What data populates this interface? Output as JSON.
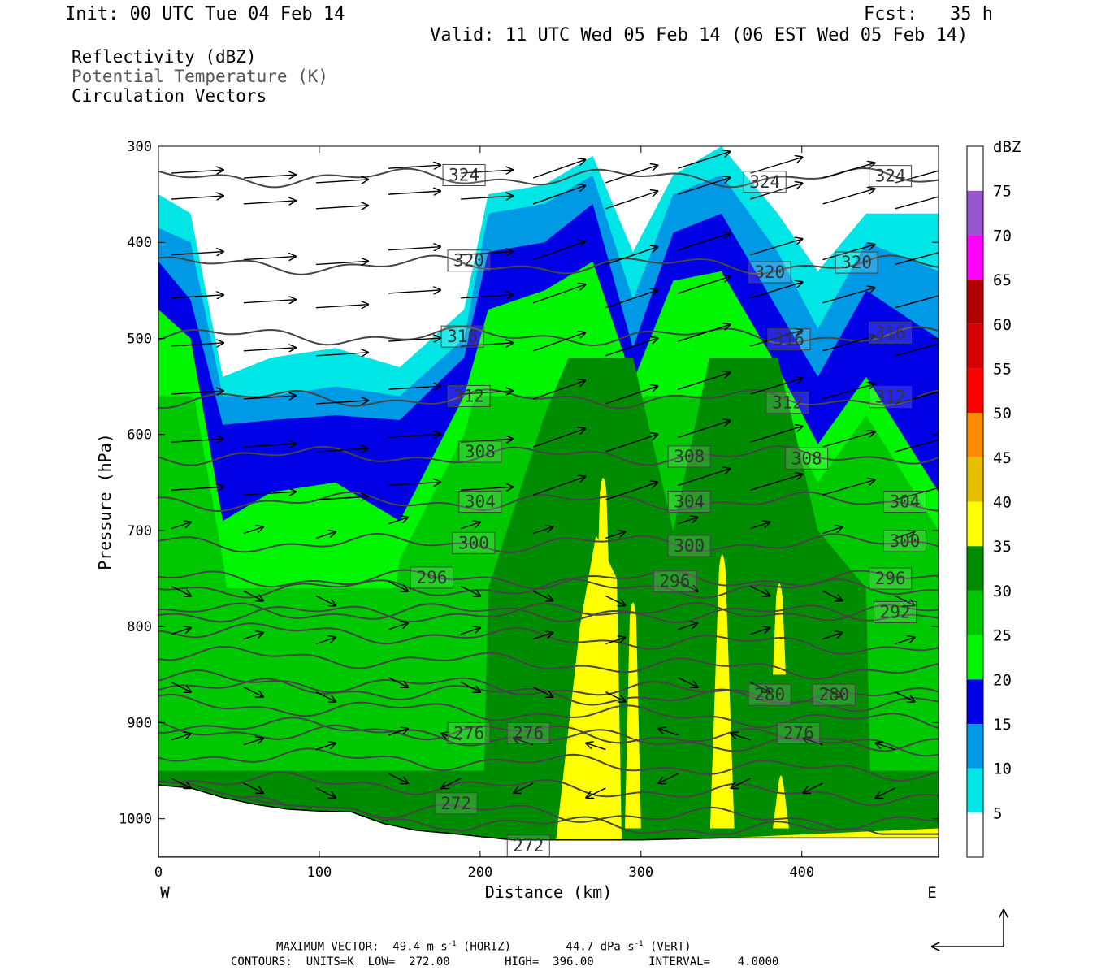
{
  "header": {
    "init": "Init: 00 UTC Tue 04 Feb 14",
    "fcst": "Fcst:   35 h",
    "valid": "Valid: 11 UTC Wed 05 Feb 14 (06 EST Wed 05 Feb 14)"
  },
  "legend": {
    "line1": "Reflectivity (dBZ)",
    "line2": "Potential Temperature (K)",
    "line3": "Circulation Vectors"
  },
  "footer": {
    "max_vector_prefix": "MAXIMUM VECTOR:  49.4 m s",
    "max_vector_horiz": " (HORIZ)        44.7 dPa s",
    "max_vector_vert": " (VERT)",
    "exp": "-1",
    "contours": "CONTOURS:  UNITS=K  LOW=  272.00        HIGH=  396.00        INTERVAL=    4.0000"
  },
  "colors": {
    "bins": [
      "#ffffff",
      "#00e6e6",
      "#0099e6",
      "#0000e6",
      "#00f500",
      "#00c800",
      "#008c00",
      "#ffff00",
      "#e6c000",
      "#ff8c00",
      "#ff0000",
      "#d70000",
      "#b00000",
      "#ff00ff",
      "#9955cc",
      "#ffffff"
    ],
    "contour": "#454545",
    "vector": "#000000"
  },
  "chart_data": {
    "type": "heatmap",
    "title": "",
    "xlabel": "Distance (km)",
    "ylabel": "Pressure (hPa)",
    "xlim": [
      0,
      485
    ],
    "ylim": [
      1040,
      300
    ],
    "x_ticks": [
      "0",
      "100",
      "200",
      "300",
      "400"
    ],
    "y_ticks": [
      "300",
      "400",
      "500",
      "600",
      "700",
      "800",
      "900",
      "1000"
    ],
    "x_end_labels": {
      "west": "W",
      "east": "E"
    },
    "colorbar": {
      "unit": "dBZ",
      "labels": [
        "5",
        "10",
        "15",
        "20",
        "25",
        "30",
        "35",
        "40",
        "45",
        "50",
        "55",
        "60",
        "65",
        "70",
        "75"
      ]
    },
    "contour_labels": [
      "324",
      "320",
      "316",
      "312",
      "308",
      "304",
      "300",
      "296",
      "292",
      "280",
      "276",
      "272"
    ],
    "contour_label_positions": [
      {
        "text": "324",
        "x": 190,
        "p": 330
      },
      {
        "text": "324",
        "x": 377,
        "p": 337
      },
      {
        "text": "324",
        "x": 455,
        "p": 331
      },
      {
        "text": "320",
        "x": 193,
        "p": 419
      },
      {
        "text": "320",
        "x": 380,
        "p": 431
      },
      {
        "text": "320",
        "x": 434,
        "p": 421
      },
      {
        "text": "316",
        "x": 189,
        "p": 498
      },
      {
        "text": "316",
        "x": 392,
        "p": 501
      },
      {
        "text": "316",
        "x": 455,
        "p": 494
      },
      {
        "text": "312",
        "x": 193,
        "p": 560
      },
      {
        "text": "312",
        "x": 391,
        "p": 567
      },
      {
        "text": "312",
        "x": 455,
        "p": 561
      },
      {
        "text": "308",
        "x": 200,
        "p": 618
      },
      {
        "text": "308",
        "x": 330,
        "p": 623
      },
      {
        "text": "308",
        "x": 403,
        "p": 625
      },
      {
        "text": "304",
        "x": 200,
        "p": 670
      },
      {
        "text": "304",
        "x": 330,
        "p": 670
      },
      {
        "text": "304",
        "x": 464,
        "p": 670
      },
      {
        "text": "300",
        "x": 196,
        "p": 713
      },
      {
        "text": "300",
        "x": 330,
        "p": 716
      },
      {
        "text": "300",
        "x": 464,
        "p": 711
      },
      {
        "text": "296",
        "x": 170,
        "p": 749
      },
      {
        "text": "296",
        "x": 321,
        "p": 753
      },
      {
        "text": "296",
        "x": 455,
        "p": 750
      },
      {
        "text": "292",
        "x": 458,
        "p": 785
      },
      {
        "text": "280",
        "x": 380,
        "p": 871
      },
      {
        "text": "280",
        "x": 420,
        "p": 871
      },
      {
        "text": "276",
        "x": 193,
        "p": 911
      },
      {
        "text": "276",
        "x": 230,
        "p": 911
      },
      {
        "text": "276",
        "x": 398,
        "p": 911
      },
      {
        "text": "272",
        "x": 185,
        "p": 984
      },
      {
        "text": "272",
        "x": 230,
        "p": 1028
      }
    ],
    "reflectivity_profile": [
      {
        "x": 0,
        "top": 350,
        "b10": 385,
        "b15": 420,
        "b20": 470,
        "peak": 32
      },
      {
        "x": 20,
        "top": 370,
        "b10": 400,
        "b15": 460,
        "b20": 500,
        "peak": 30
      },
      {
        "x": 40,
        "top": 540,
        "b10": 560,
        "b15": 590,
        "b20": 690,
        "peak": 30
      },
      {
        "x": 70,
        "top": 520,
        "b10": 560,
        "b15": 585,
        "b20": 660,
        "peak": 28
      },
      {
        "x": 110,
        "top": 510,
        "b10": 550,
        "b15": 580,
        "b20": 650,
        "peak": 28
      },
      {
        "x": 150,
        "top": 530,
        "b10": 560,
        "b15": 585,
        "b20": 690,
        "peak": 30
      },
      {
        "x": 190,
        "top": 470,
        "b10": 500,
        "b15": 520,
        "b20": 560,
        "peak": 30
      },
      {
        "x": 205,
        "top": 350,
        "b10": 370,
        "b15": 410,
        "b20": 470,
        "peak": 33
      },
      {
        "x": 240,
        "top": 340,
        "b10": 360,
        "b15": 400,
        "b20": 450,
        "peak": 36
      },
      {
        "x": 270,
        "top": 310,
        "b10": 330,
        "b15": 360,
        "b20": 420,
        "peak": 38
      },
      {
        "x": 295,
        "top": 410,
        "b10": 460,
        "b15": 510,
        "b20": 545,
        "peak": 37
      },
      {
        "x": 320,
        "top": 330,
        "b10": 350,
        "b15": 390,
        "b20": 440,
        "peak": 34
      },
      {
        "x": 350,
        "top": 300,
        "b10": 330,
        "b15": 370,
        "b20": 430,
        "peak": 38
      },
      {
        "x": 385,
        "top": 370,
        "b10": 410,
        "b15": 470,
        "b20": 530,
        "peak": 37
      },
      {
        "x": 410,
        "top": 430,
        "b10": 490,
        "b15": 540,
        "b20": 610,
        "peak": 34
      },
      {
        "x": 440,
        "top": 370,
        "b10": 400,
        "b15": 450,
        "b20": 540,
        "peak": 33
      },
      {
        "x": 485,
        "top": 370,
        "b10": 430,
        "b15": 500,
        "b20": 660,
        "peak": 32
      }
    ],
    "terrain_surface": [
      {
        "x": 0,
        "p": 965
      },
      {
        "x": 20,
        "p": 968
      },
      {
        "x": 40,
        "p": 978
      },
      {
        "x": 60,
        "p": 985
      },
      {
        "x": 80,
        "p": 990
      },
      {
        "x": 100,
        "p": 992
      },
      {
        "x": 120,
        "p": 993
      },
      {
        "x": 140,
        "p": 1005
      },
      {
        "x": 160,
        "p": 1012
      },
      {
        "x": 180,
        "p": 1015
      },
      {
        "x": 220,
        "p": 1022
      },
      {
        "x": 260,
        "p": 1022
      },
      {
        "x": 300,
        "p": 1022
      },
      {
        "x": 350,
        "p": 1020
      },
      {
        "x": 400,
        "p": 1020
      },
      {
        "x": 440,
        "p": 1020
      },
      {
        "x": 485,
        "p": 1020
      }
    ]
  }
}
